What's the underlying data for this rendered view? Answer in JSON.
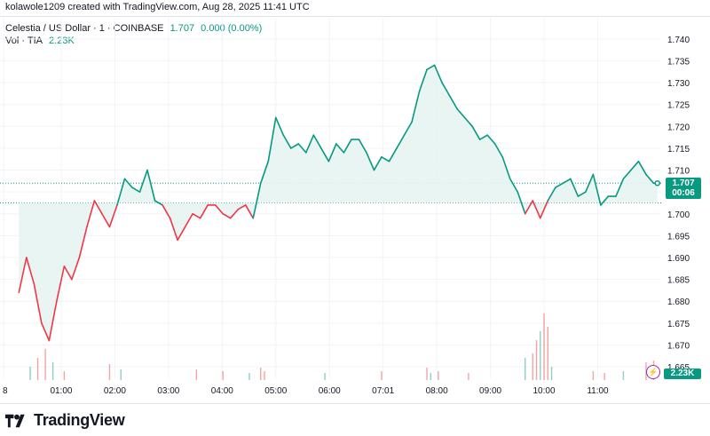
{
  "attribution": "kolawole1209 created with TradingView.com, Aug 28, 2025 11:41 UTC",
  "legend": {
    "symbol": "Celestia / US Dollar · 1 · COINBASE",
    "price": "1.707",
    "change": "0.000 (0.00%)",
    "vol_label": "Vol · TIA",
    "vol_value": "2.23K"
  },
  "price_tag": {
    "value": "1.707",
    "countdown": "00:06"
  },
  "vol_tag": "2.23K",
  "footer": {
    "brand": "TradingView"
  },
  "colors": {
    "up": "#089981",
    "down": "#f23645",
    "grid": "#f0f3fa",
    "fill": "#e6f4f1",
    "fill_down": "#fde7e9"
  },
  "chart_data": {
    "type": "area",
    "baseline": 1.7025,
    "ylim": [
      1.664,
      1.742
    ],
    "yticks": [
      "1.740",
      "1.735",
      "1.730",
      "1.725",
      "1.720",
      "1.715",
      "1.710",
      "1.705",
      "1.700",
      "1.695",
      "1.690",
      "1.685",
      "1.680",
      "1.675",
      "1.670",
      "1.665"
    ],
    "xticks": [
      "8",
      "01:00",
      "02:00",
      "03:00",
      "04:00",
      "05:00",
      "06:00",
      "07:01",
      "08:00",
      "09:00",
      "10:00",
      "11:00"
    ],
    "xlim_minutes": [
      -5,
      170
    ],
    "series": [
      {
        "x_minutes": [
          0,
          2,
          4,
          6,
          8,
          10,
          12,
          14,
          16,
          18,
          20,
          22,
          24,
          26,
          28,
          30,
          32,
          34,
          36,
          38,
          40,
          42,
          44,
          46,
          48,
          50,
          52,
          54,
          56,
          58,
          60,
          62,
          64,
          66,
          68,
          70,
          72,
          74,
          76,
          78,
          80,
          82,
          84,
          86,
          88,
          90,
          92,
          94,
          96,
          98,
          100,
          102,
          104,
          106,
          108,
          110,
          112,
          114,
          116,
          118,
          120,
          122,
          124,
          126,
          128,
          130,
          132,
          134,
          136,
          138,
          140,
          142,
          144,
          146,
          148,
          150,
          152,
          154,
          156,
          158,
          160,
          162,
          164,
          166,
          168,
          169
        ],
        "values": [
          1.682,
          1.69,
          1.684,
          1.675,
          1.671,
          1.68,
          1.688,
          1.685,
          1.69,
          1.697,
          1.703,
          1.7,
          1.697,
          1.702,
          1.708,
          1.706,
          1.705,
          1.71,
          1.703,
          1.702,
          1.699,
          1.694,
          1.697,
          1.7,
          1.699,
          1.702,
          1.702,
          1.7,
          1.699,
          1.701,
          1.702,
          1.699,
          1.707,
          1.712,
          1.722,
          1.718,
          1.715,
          1.716,
          1.714,
          1.718,
          1.715,
          1.712,
          1.716,
          1.714,
          1.717,
          1.717,
          1.714,
          1.71,
          1.713,
          1.712,
          1.715,
          1.718,
          1.721,
          1.728,
          1.733,
          1.734,
          1.73,
          1.727,
          1.724,
          1.722,
          1.72,
          1.717,
          1.718,
          1.716,
          1.713,
          1.708,
          1.705,
          1.7,
          1.703,
          1.699,
          1.703,
          1.706,
          1.707,
          1.708,
          1.704,
          1.705,
          1.709,
          1.702,
          1.704,
          1.704,
          1.708,
          1.71,
          1.712,
          1.709,
          1.707,
          1.707
        ]
      }
    ],
    "volume": {
      "x_minutes": [
        3,
        5,
        7,
        9,
        12,
        24,
        27,
        47,
        54,
        61,
        64,
        65,
        81,
        96,
        108,
        109,
        111,
        119,
        134,
        136,
        137,
        138,
        139,
        140,
        141,
        152,
        155,
        160,
        166,
        168
      ],
      "values": [
        0.15,
        0.25,
        0.35,
        0.2,
        0.1,
        0.18,
        0.12,
        0.12,
        0.1,
        0.08,
        0.14,
        0.1,
        0.08,
        0.1,
        0.14,
        0.08,
        0.1,
        0.08,
        0.25,
        0.3,
        0.45,
        0.55,
        0.75,
        0.6,
        0.15,
        0.1,
        0.08,
        0.1,
        0.2,
        0.22
      ]
    }
  }
}
